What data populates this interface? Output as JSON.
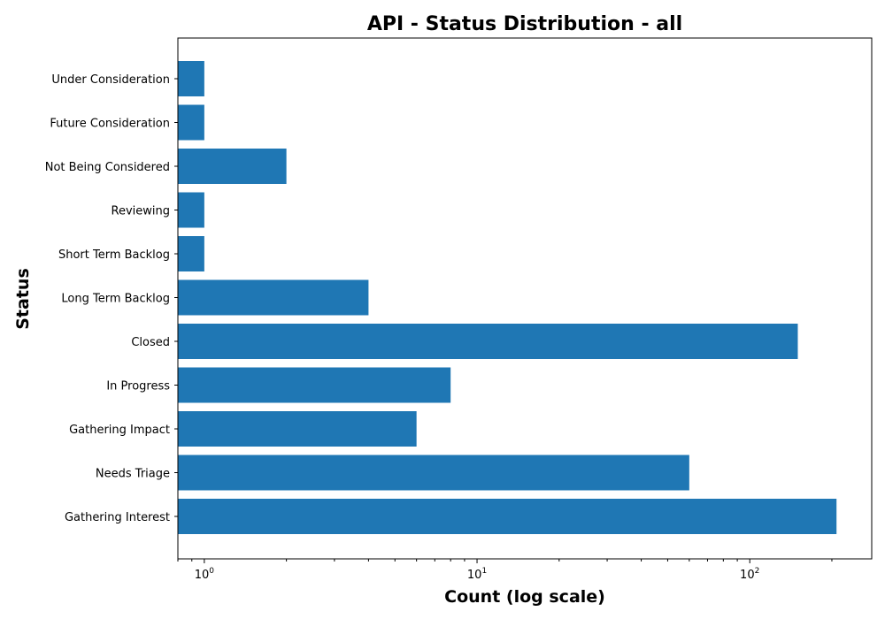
{
  "chart_data": {
    "type": "bar",
    "orientation": "horizontal",
    "title": "API - Status Distribution - all",
    "xlabel": "Count (log scale)",
    "ylabel": "Status",
    "x_scale": "log",
    "xlim": [
      0.8,
      280
    ],
    "x_ticks": [
      {
        "value": 1,
        "base": "10",
        "exp": "0"
      },
      {
        "value": 10,
        "base": "10",
        "exp": "1"
      },
      {
        "value": 100,
        "base": "10",
        "exp": "2"
      }
    ],
    "grid": false,
    "color": "#1f77b4",
    "categories": [
      "Under Consideration",
      "Future Consideration",
      "Not Being Considered",
      "Reviewing",
      "Short Term Backlog",
      "Long Term Backlog",
      "Closed",
      "In Progress",
      "Gathering Impact",
      "Needs Triage",
      "Gathering Interest"
    ],
    "values": [
      1,
      1,
      2,
      1,
      1,
      4,
      150,
      8,
      6,
      60,
      208
    ]
  }
}
